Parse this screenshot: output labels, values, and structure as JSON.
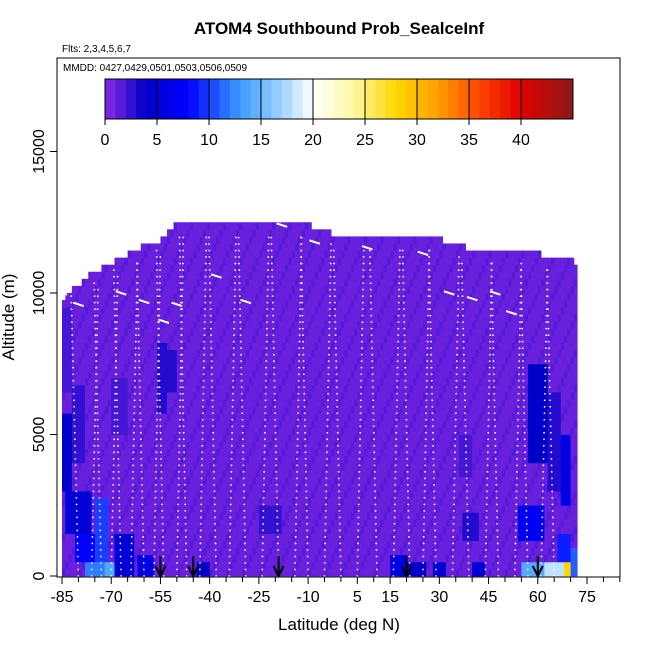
{
  "chart_data": {
    "type": "heatmap",
    "title": "ATOM4 Southbound Prob_SealceInf",
    "notes": [
      "Flts: 2,3,4,5,6,7",
      "MMDD: 0427,0429,0501,0503,0506,0509"
    ],
    "xlabel": "Latitude (deg N)",
    "ylabel": "Altitude (m)",
    "xlim": [
      -87,
      92
    ],
    "ylim": [
      0,
      17500
    ],
    "x_ticks": [
      -85,
      -70,
      -55,
      -40,
      -25,
      -10,
      5,
      15,
      30,
      45,
      60,
      75
    ],
    "x_tick_labels": [
      "-85",
      "-70",
      "-55",
      "-40",
      "-25",
      "-10",
      "5",
      "15",
      "30",
      "45",
      "60",
      "75"
    ],
    "x_minor_ticks": [
      -80,
      -75,
      -65,
      -60,
      -50,
      -45,
      -35,
      -30,
      -20,
      -15,
      -5,
      0,
      10,
      20,
      25,
      35,
      40,
      50,
      55,
      65,
      70,
      80,
      85,
      90
    ],
    "y_ticks": [
      0,
      5000,
      10000,
      15000
    ],
    "y_tick_labels": [
      "0",
      "5000",
      "10000",
      "15000"
    ],
    "colorbar": {
      "min": 0,
      "max": 45,
      "ticks": [
        0,
        5,
        10,
        15,
        20,
        25,
        30,
        35,
        40
      ],
      "tick_labels": [
        "0",
        "5",
        "10",
        "15",
        "20",
        "25",
        "30",
        "35",
        "40"
      ],
      "stops": [
        {
          "v": 0,
          "c": "#8a2be2"
        },
        {
          "v": 4,
          "c": "#0000c8"
        },
        {
          "v": 8,
          "c": "#0000ff"
        },
        {
          "v": 13,
          "c": "#3c9bff"
        },
        {
          "v": 17,
          "c": "#9fd3ff"
        },
        {
          "v": 20,
          "c": "#ffffff"
        },
        {
          "v": 24,
          "c": "#fff7a0"
        },
        {
          "v": 28,
          "c": "#ffd700"
        },
        {
          "v": 32,
          "c": "#ff9f00"
        },
        {
          "v": 36,
          "c": "#ff4500"
        },
        {
          "v": 40,
          "c": "#e00000"
        },
        {
          "v": 45,
          "c": "#8b1a1a"
        }
      ]
    },
    "profile": [
      {
        "lat": -85,
        "top": 9800
      },
      {
        "lat": -83,
        "top": 10000
      },
      {
        "lat": -80,
        "top": 10300
      },
      {
        "lat": -77,
        "top": 10600
      },
      {
        "lat": -74,
        "top": 10800
      },
      {
        "lat": -71,
        "top": 11000
      },
      {
        "lat": -68,
        "top": 11200
      },
      {
        "lat": -62,
        "top": 11600
      },
      {
        "lat": -56,
        "top": 11800
      },
      {
        "lat": -51,
        "top": 12400
      },
      {
        "lat": -10,
        "top": 12400
      },
      {
        "lat": 0,
        "top": 12000
      },
      {
        "lat": 30,
        "top": 12000
      },
      {
        "lat": 33,
        "top": 11700
      },
      {
        "lat": 40,
        "top": 11600
      },
      {
        "lat": 53,
        "top": 11600
      },
      {
        "lat": 55,
        "top": 11400
      },
      {
        "lat": 60,
        "top": 11400
      },
      {
        "lat": 72,
        "top": 11100
      }
    ],
    "base_value": 1,
    "hotspots": [
      {
        "lat0": -86,
        "lat1": -82,
        "alt0": 3000,
        "alt1": 5800,
        "value": 4
      },
      {
        "lat0": -82,
        "lat1": -78,
        "alt0": 4000,
        "alt1": 6800,
        "value": 2.5
      },
      {
        "lat0": -86,
        "lat1": -82,
        "alt0": 6500,
        "alt1": 9500,
        "value": 2
      },
      {
        "lat0": -84,
        "lat1": -76,
        "alt0": 1500,
        "alt1": 3000,
        "value": 5
      },
      {
        "lat0": -81,
        "lat1": -74,
        "alt0": 400,
        "alt1": 1500,
        "value": 8
      },
      {
        "lat0": -75,
        "lat1": -71,
        "alt0": 400,
        "alt1": 2800,
        "value": 10
      },
      {
        "lat0": -72,
        "lat1": -69,
        "alt0": 0,
        "alt1": 450,
        "value": 14
      },
      {
        "lat0": -78,
        "lat1": -72,
        "alt0": 0,
        "alt1": 450,
        "value": 12
      },
      {
        "lat0": -69,
        "lat1": -63,
        "alt0": 0,
        "alt1": 1500,
        "value": 5
      },
      {
        "lat0": -62,
        "lat1": -57,
        "alt0": 0,
        "alt1": 800,
        "value": 6
      },
      {
        "lat0": -56,
        "lat1": -53,
        "alt0": 5800,
        "alt1": 8200,
        "value": 3
      },
      {
        "lat0": -53,
        "lat1": -50,
        "alt0": 6500,
        "alt1": 7900,
        "value": 3
      },
      {
        "lat0": -70,
        "lat1": -65,
        "alt0": 5000,
        "alt1": 7000,
        "value": 2
      },
      {
        "lat0": -44,
        "lat1": -40,
        "alt0": 0,
        "alt1": 500,
        "value": 4
      },
      {
        "lat0": -25,
        "lat1": -18,
        "alt0": 1500,
        "alt1": 2600,
        "value": 2.5
      },
      {
        "lat0": 15,
        "lat1": 20,
        "alt0": 0,
        "alt1": 700,
        "value": 6
      },
      {
        "lat0": 20,
        "lat1": 26,
        "alt0": 0,
        "alt1": 450,
        "value": 4
      },
      {
        "lat0": 28,
        "lat1": 32,
        "alt0": 0,
        "alt1": 500,
        "value": 5
      },
      {
        "lat0": 37,
        "lat1": 42,
        "alt0": 1200,
        "alt1": 2200,
        "value": 3
      },
      {
        "lat0": 40,
        "lat1": 44,
        "alt0": 0,
        "alt1": 450,
        "value": 5
      },
      {
        "lat0": 36,
        "lat1": 40,
        "alt0": 3500,
        "alt1": 5000,
        "value": 2
      },
      {
        "lat0": 54,
        "lat1": 62,
        "alt0": 1200,
        "alt1": 2500,
        "value": 7
      },
      {
        "lat0": 57,
        "lat1": 63,
        "alt0": 4000,
        "alt1": 7500,
        "value": 4
      },
      {
        "lat0": 63,
        "lat1": 67,
        "alt0": 3000,
        "alt1": 6500,
        "value": 3
      },
      {
        "lat0": 67,
        "lat1": 70,
        "alt0": 2500,
        "alt1": 5000,
        "value": 6
      },
      {
        "lat0": 66,
        "lat1": 70,
        "alt0": 500,
        "alt1": 1500,
        "value": 9
      },
      {
        "lat0": 62,
        "lat1": 68,
        "alt0": 0,
        "alt1": 500,
        "value": 18
      },
      {
        "lat0": 55,
        "lat1": 62,
        "alt0": 0,
        "alt1": 500,
        "value": 14
      },
      {
        "lat0": 68,
        "lat1": 70,
        "alt0": 0,
        "alt1": 400,
        "value": 28
      },
      {
        "lat0": 70,
        "lat1": 72,
        "alt0": 0,
        "alt1": 900,
        "value": 11
      }
    ],
    "markers": [
      -55,
      -45,
      -19,
      20,
      60
    ],
    "flight_track_lats": [
      -80,
      -76,
      -73,
      -70,
      -67,
      -64,
      -60,
      -57,
      -54,
      -50,
      -47,
      -43,
      -38,
      -34,
      -29,
      -24,
      -19,
      -14,
      -10,
      -5,
      0,
      5,
      11,
      16,
      21,
      25,
      29,
      34,
      39,
      44,
      48,
      53,
      57,
      61,
      65
    ],
    "track_segments": [
      {
        "lat": -85,
        "alt": 10000
      },
      {
        "lat": -80,
        "alt": 9600
      },
      {
        "lat": -67,
        "alt": 10000
      },
      {
        "lat": -60,
        "alt": 9700
      },
      {
        "lat": -54,
        "alt": 9000
      },
      {
        "lat": -50,
        "alt": 9600
      },
      {
        "lat": -38,
        "alt": 10600
      },
      {
        "lat": -29,
        "alt": 9700
      },
      {
        "lat": -18,
        "alt": 12400
      },
      {
        "lat": -8,
        "alt": 11800
      },
      {
        "lat": 8,
        "alt": 11600
      },
      {
        "lat": 25,
        "alt": 11400
      },
      {
        "lat": 33,
        "alt": 10000
      },
      {
        "lat": 40,
        "alt": 9800
      },
      {
        "lat": 47,
        "alt": 10000
      },
      {
        "lat": 52,
        "alt": 9300
      },
      {
        "lat": 57,
        "alt": 11600
      }
    ]
  }
}
